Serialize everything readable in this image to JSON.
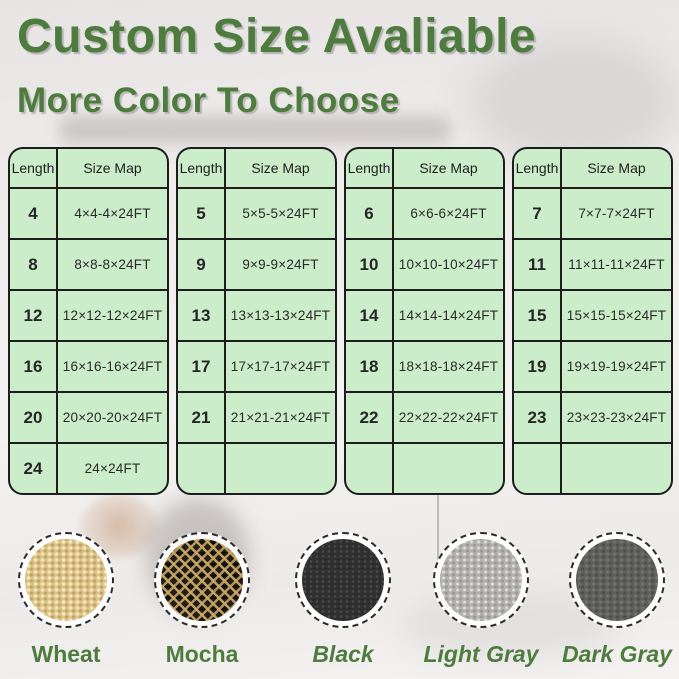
{
  "title": "Custom Size Avaliable",
  "subtitle": "More Color To Choose",
  "accent_color": "#4d7c3e",
  "table_fill_color": "#cbedc9",
  "table_border_color": "#1d1d1d",
  "tables": [
    {
      "headers": [
        "Length",
        "Size Map"
      ],
      "rows": [
        [
          "4",
          "4×4-4×24FT"
        ],
        [
          "8",
          "8×8-8×24FT"
        ],
        [
          "12",
          "12×12-12×24FT"
        ],
        [
          "16",
          "16×16-16×24FT"
        ],
        [
          "20",
          "20×20-20×24FT"
        ],
        [
          "24",
          "24×24FT"
        ]
      ]
    },
    {
      "headers": [
        "Length",
        "Size Map"
      ],
      "rows": [
        [
          "5",
          "5×5-5×24FT"
        ],
        [
          "9",
          "9×9-9×24FT"
        ],
        [
          "13",
          "13×13-13×24FT"
        ],
        [
          "17",
          "17×17-17×24FT"
        ],
        [
          "21",
          "21×21-21×24FT"
        ],
        [
          "",
          ""
        ]
      ]
    },
    {
      "headers": [
        "Length",
        "Size Map"
      ],
      "rows": [
        [
          "6",
          "6×6-6×24FT"
        ],
        [
          "10",
          "10×10-10×24FT"
        ],
        [
          "14",
          "14×14-14×24FT"
        ],
        [
          "18",
          "18×18-18×24FT"
        ],
        [
          "22",
          "22×22-22×24FT"
        ],
        [
          "",
          ""
        ]
      ]
    },
    {
      "headers": [
        "Length",
        "Size Map"
      ],
      "rows": [
        [
          "7",
          "7×7-7×24FT"
        ],
        [
          "11",
          "11×11-11×24FT"
        ],
        [
          "15",
          "15×15-15×24FT"
        ],
        [
          "19",
          "19×19-19×24FT"
        ],
        [
          "23",
          "23×23-23×24FT"
        ],
        [
          "",
          ""
        ]
      ]
    }
  ],
  "colors": [
    {
      "name": "Wheat",
      "swatch": "wheat",
      "base_color": "#ddc486",
      "italic": false
    },
    {
      "name": "Mocha",
      "swatch": "mocha",
      "base_color": "#221e17",
      "italic": false
    },
    {
      "name": "Black",
      "swatch": "black",
      "base_color": "#2e2e2e",
      "italic": true
    },
    {
      "name": "Light Gray",
      "swatch": "light-gray",
      "base_color": "#b2b1af",
      "italic": true
    },
    {
      "name": "Dark Gray",
      "swatch": "dark-gray",
      "base_color": "#5f5f5d",
      "italic": true
    }
  ]
}
